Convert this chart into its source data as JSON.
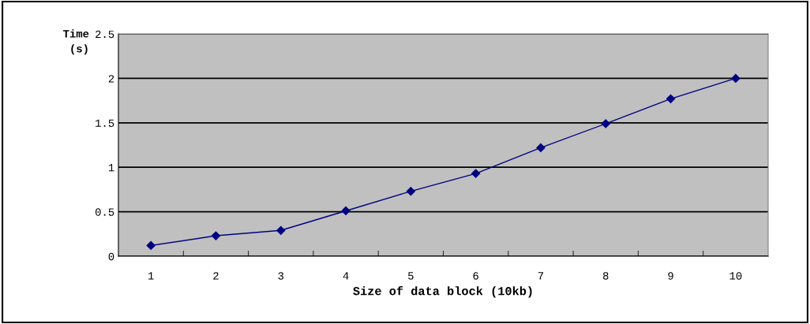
{
  "chart_data": {
    "type": "line",
    "xlabel": "Size of data block (10kb)",
    "ylabel": "Time\n(s)",
    "categories": [
      "1",
      "2",
      "3",
      "4",
      "5",
      "6",
      "7",
      "8",
      "9",
      "10"
    ],
    "series": [
      {
        "color": "#000080",
        "values": [
          0.12,
          0.23,
          0.29,
          0.51,
          0.73,
          0.93,
          1.22,
          1.49,
          1.77,
          2.0
        ]
      }
    ],
    "ylim": [
      0,
      2.5
    ],
    "yticks": [
      0,
      {
        "value": 0.5,
        "label": "0.5"
      },
      1,
      {
        "value": 1.5,
        "label": "1.5"
      },
      2,
      {
        "value": 2.5,
        "label": "2.5"
      }
    ],
    "grid": "y",
    "marker": "diamond",
    "line_style": "solid"
  }
}
